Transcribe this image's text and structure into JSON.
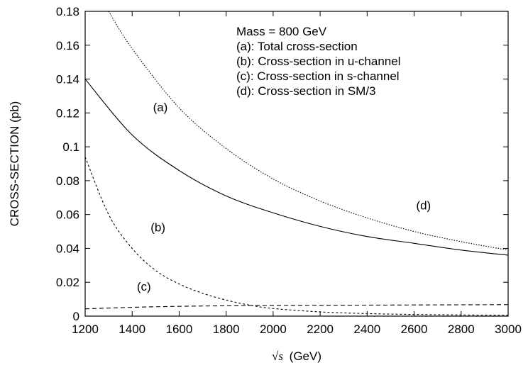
{
  "chart_data": {
    "type": "line",
    "title": "",
    "xlabel": "√s (GeV)",
    "xlabel_parts": {
      "symbol": "√s",
      "unit": "(GeV)"
    },
    "ylabel": "CROSS-SECTION (pb)",
    "xlim": [
      1200,
      3000
    ],
    "ylim": [
      0,
      0.18
    ],
    "x_ticks": [
      "1200",
      "1400",
      "1600",
      "1800",
      "2000",
      "2200",
      "2400",
      "2600",
      "2800",
      "3000"
    ],
    "y_ticks": [
      "0",
      "0.02",
      "0.04",
      "0.06",
      "0.08",
      "0.1",
      "0.12",
      "0.14",
      "0.16",
      "0.18"
    ],
    "grid": false,
    "legend": {
      "placement": "top-right",
      "lines": [
        "Mass = 800 GeV",
        "(a): Total cross-section",
        "(b): Cross-section in u-channel",
        "(c): Cross-section in s-channel",
        "(d): Cross-section in SM/3"
      ]
    },
    "series": [
      {
        "label": "(a)",
        "style": "solid",
        "x": [
          1200,
          1400,
          1600,
          1800,
          2000,
          2200,
          2400,
          2600,
          2800,
          3000
        ],
        "values": [
          0.14,
          0.107,
          0.086,
          0.071,
          0.061,
          0.053,
          0.047,
          0.043,
          0.039,
          0.036
        ]
      },
      {
        "label": "(b)",
        "style": "dashed",
        "x": [
          1200,
          1300,
          1400,
          1500,
          1600,
          1700,
          1800,
          1900,
          2000,
          2200,
          2400,
          2600,
          2800,
          3000
        ],
        "values": [
          0.094,
          0.06,
          0.04,
          0.027,
          0.019,
          0.0135,
          0.0095,
          0.0065,
          0.0045,
          0.0025,
          0.0015,
          0.001,
          0.0007,
          0.0005
        ]
      },
      {
        "label": "(c)",
        "style": "dash-long",
        "x": [
          1200,
          1400,
          1600,
          1800,
          2000,
          2200,
          2400,
          2600,
          2800,
          3000
        ],
        "values": [
          0.0043,
          0.0052,
          0.0058,
          0.0061,
          0.0063,
          0.0064,
          0.0065,
          0.0066,
          0.0067,
          0.0068
        ]
      },
      {
        "label": "(d)",
        "style": "dotted",
        "x": [
          1300,
          1400,
          1600,
          1800,
          2000,
          2200,
          2400,
          2600,
          2800,
          3000
        ],
        "values": [
          0.18,
          0.158,
          0.123,
          0.099,
          0.081,
          0.068,
          0.058,
          0.05,
          0.044,
          0.039
        ]
      }
    ],
    "annotations": [
      {
        "text": "(a)",
        "x": 1520,
        "y": 0.121
      },
      {
        "text": "(b)",
        "x": 1510,
        "y": 0.05
      },
      {
        "text": "(c)",
        "x": 1450,
        "y": 0.015
      },
      {
        "text": "(d)",
        "x": 2640,
        "y": 0.063
      }
    ]
  }
}
